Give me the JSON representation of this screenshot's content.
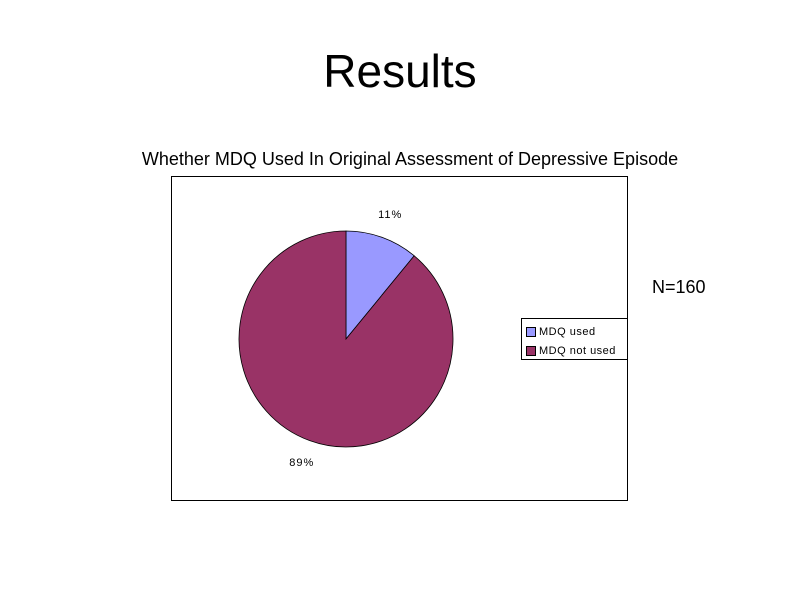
{
  "slide": {
    "title": "Results",
    "sample_size": "N=160"
  },
  "chart_data": {
    "type": "pie",
    "title": "Whether MDQ Used In Original Assessment of Depressive Episode",
    "categories": [
      "MDQ used",
      "MDQ not used"
    ],
    "values": [
      11,
      89
    ],
    "labels": [
      "11%",
      "89%"
    ],
    "colors": [
      "#9999ff",
      "#993366"
    ],
    "legend_position": "right"
  }
}
